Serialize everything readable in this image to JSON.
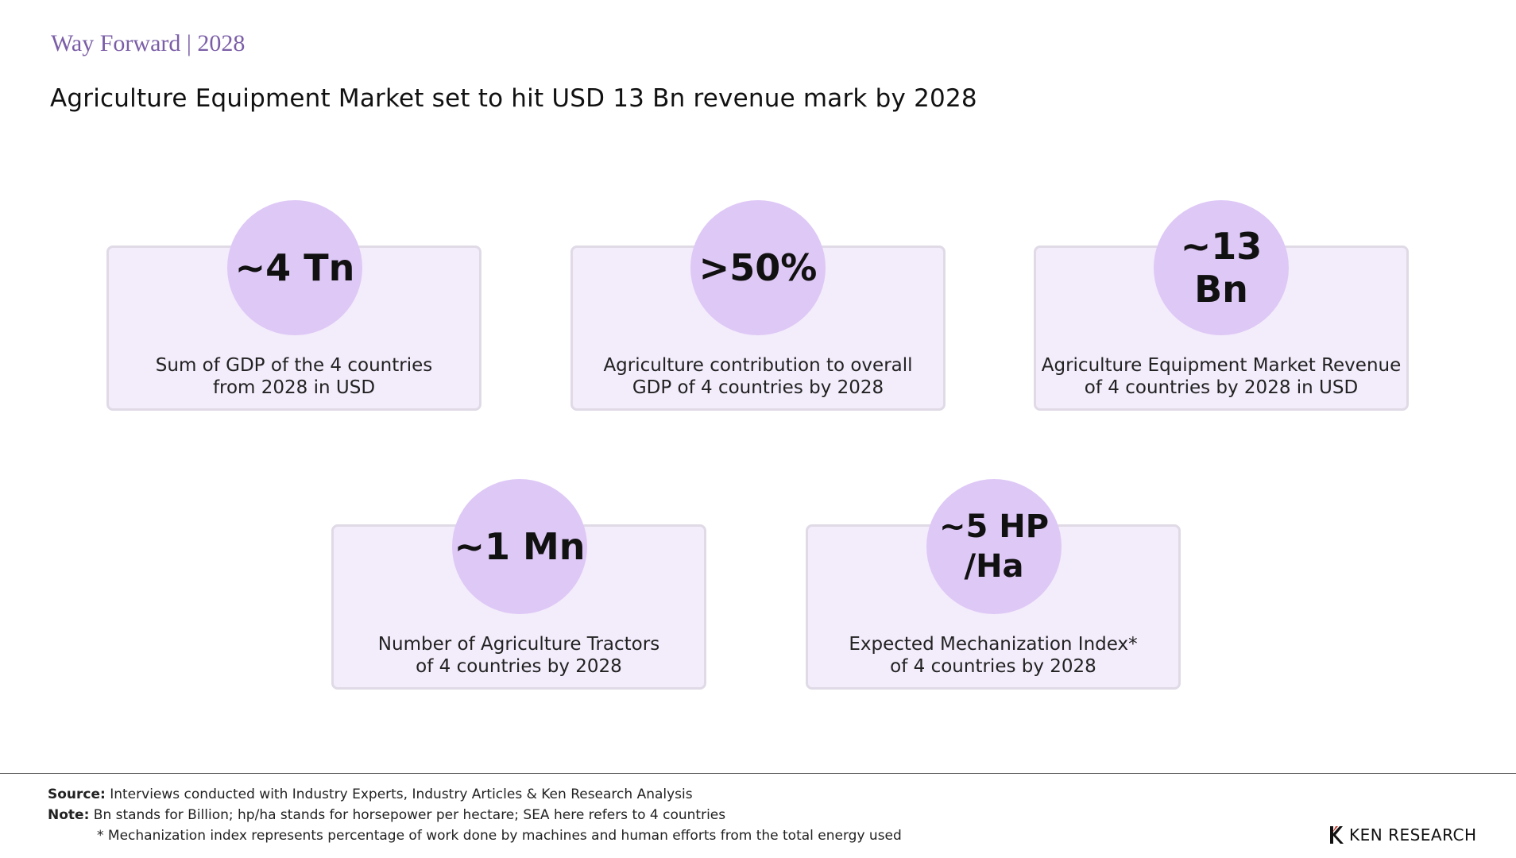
{
  "header": {
    "section_label": "Way Forward | 2028",
    "headline": "Agriculture Equipment Market set to hit USD 13 Bn revenue mark by 2028"
  },
  "stats": [
    {
      "value": "~4 Tn",
      "description": "Sum of GDP of the 4 countries\nfrom 2028 in USD"
    },
    {
      "value": ">50%",
      "description": "Agriculture contribution to overall\nGDP of 4 countries by 2028"
    },
    {
      "value": "~13 Bn",
      "description": "Agriculture Equipment Market Revenue\nof 4 countries by 2028 in USD"
    },
    {
      "value": "~1 Mn",
      "description": "Number of Agriculture Tractors\nof 4 countries by 2028"
    },
    {
      "value": "~5 HP\n/Ha",
      "description": "Expected Mechanization Index*\nof 4 countries by 2028"
    }
  ],
  "footer": {
    "source_label": "Source:",
    "source_text": " Interviews conducted with Industry Experts, Industry Articles & Ken Research Analysis",
    "note_label": "Note:",
    "note_text": " Bn stands for Billion; hp/ha stands for horsepower per hectare; SEA here refers to 4 countries",
    "footnote": "* Mechanization index represents percentage of work done by machines and human efforts from the total energy used"
  },
  "brand": {
    "name": "KEN RESEARCH",
    "icon": "ken-research-logo-icon"
  },
  "colors": {
    "accent": "#7b5ea7",
    "card_bg": "#f3ecfb",
    "circle_bg": "#dec8f6"
  }
}
